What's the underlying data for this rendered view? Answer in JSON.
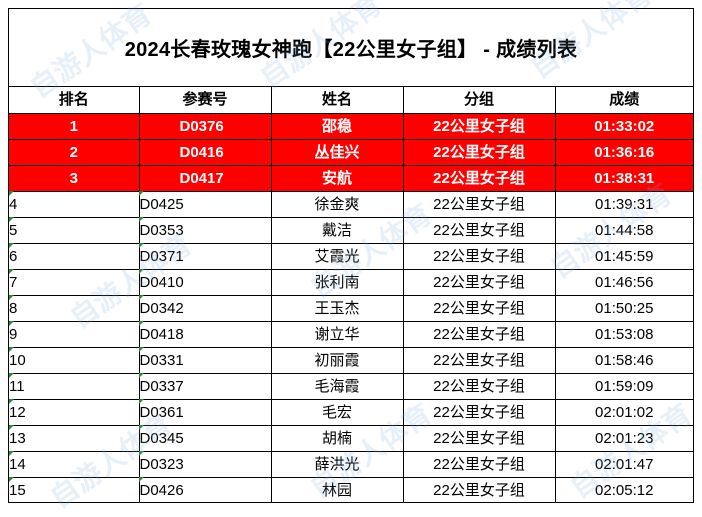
{
  "title": "2024长春玫瑰女神跑【22公里女子组】 - 成绩列表",
  "columns": [
    "排名",
    "参赛号",
    "姓名",
    "分组",
    "成绩"
  ],
  "rows": [
    {
      "rank": "1",
      "bib": "D0376",
      "name": "邵稳",
      "group": "22公里女子组",
      "time": "01:33:02"
    },
    {
      "rank": "2",
      "bib": "D0416",
      "name": "丛佳兴",
      "group": "22公里女子组",
      "time": "01:36:16"
    },
    {
      "rank": "3",
      "bib": "D0417",
      "name": "安航",
      "group": "22公里女子组",
      "time": "01:38:31"
    },
    {
      "rank": "4",
      "bib": "D0425",
      "name": "徐金爽",
      "group": "22公里女子组",
      "time": "01:39:31"
    },
    {
      "rank": "5",
      "bib": "D0353",
      "name": "戴洁",
      "group": "22公里女子组",
      "time": "01:44:58"
    },
    {
      "rank": "6",
      "bib": "D0371",
      "name": "艾霞光",
      "group": "22公里女子组",
      "time": "01:45:59"
    },
    {
      "rank": "7",
      "bib": "D0410",
      "name": "张利南",
      "group": "22公里女子组",
      "time": "01:46:56"
    },
    {
      "rank": "8",
      "bib": "D0342",
      "name": "王玉杰",
      "group": "22公里女子组",
      "time": "01:50:25"
    },
    {
      "rank": "9",
      "bib": "D0418",
      "name": "谢立华",
      "group": "22公里女子组",
      "time": "01:53:08"
    },
    {
      "rank": "10",
      "bib": "D0331",
      "name": "初丽霞",
      "group": "22公里女子组",
      "time": "01:58:46"
    },
    {
      "rank": "11",
      "bib": "D0337",
      "name": "毛海霞",
      "group": "22公里女子组",
      "time": "01:59:09"
    },
    {
      "rank": "12",
      "bib": "D0361",
      "name": "毛宏",
      "group": "22公里女子组",
      "time": "02:01:02"
    },
    {
      "rank": "13",
      "bib": "D0345",
      "name": "胡楠",
      "group": "22公里女子组",
      "time": "02:01:23"
    },
    {
      "rank": "14",
      "bib": "D0323",
      "name": "薛洪光",
      "group": "22公里女子组",
      "time": "02:01:47"
    },
    {
      "rank": "15",
      "bib": "D0426",
      "name": "林园",
      "group": "22公里女子组",
      "time": "02:05:12"
    }
  ],
  "highlight_color": "#ff0000",
  "watermark_text": "自游人体育"
}
